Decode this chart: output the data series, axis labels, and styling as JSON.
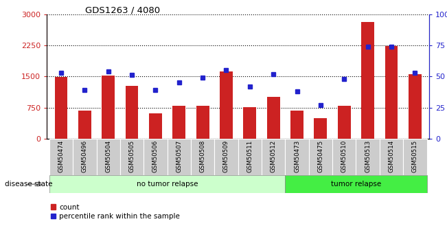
{
  "title": "GDS1263 / 4080",
  "samples": [
    "GSM50474",
    "GSM50496",
    "GSM50504",
    "GSM50505",
    "GSM50506",
    "GSM50507",
    "GSM50508",
    "GSM50509",
    "GSM50511",
    "GSM50512",
    "GSM50473",
    "GSM50475",
    "GSM50510",
    "GSM50513",
    "GSM50514",
    "GSM50515"
  ],
  "counts": [
    1480,
    670,
    1520,
    1280,
    610,
    800,
    800,
    1620,
    760,
    1010,
    680,
    490,
    800,
    2820,
    2230,
    1560
  ],
  "percentiles": [
    53,
    39,
    54,
    51,
    39,
    45,
    49,
    55,
    42,
    52,
    38,
    27,
    48,
    74,
    74,
    53
  ],
  "no_tumor_count": 10,
  "bar_color": "#cc2222",
  "dot_color": "#2222cc",
  "left_ylim": [
    0,
    3000
  ],
  "right_ylim": [
    0,
    100
  ],
  "left_yticks": [
    0,
    750,
    1500,
    2250,
    3000
  ],
  "right_yticks": [
    0,
    25,
    50,
    75,
    100
  ],
  "right_yticklabels": [
    "0",
    "25",
    "50",
    "75",
    "100%"
  ],
  "group_labels": [
    "no tumor relapse",
    "tumor relapse"
  ],
  "group_colors": [
    "#ccffcc",
    "#44ee44"
  ],
  "legend_count_label": "count",
  "legend_pct_label": "percentile rank within the sample",
  "disease_state_label": "disease state",
  "tick_label_bg": "#cccccc"
}
